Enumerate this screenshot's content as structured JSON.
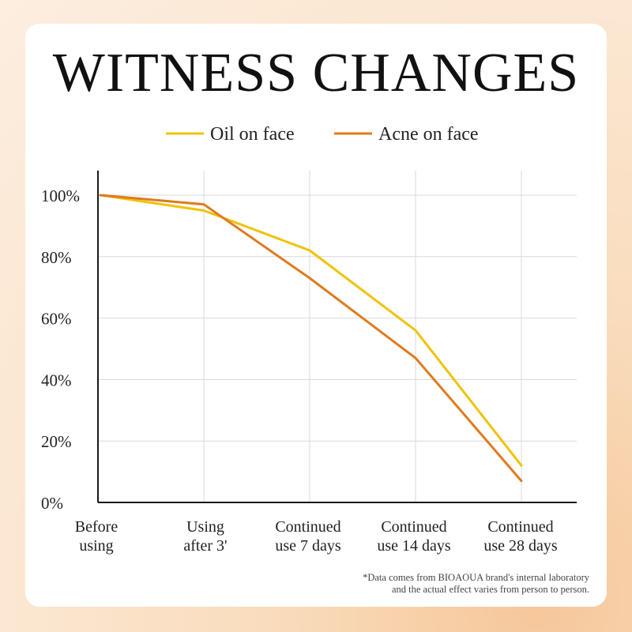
{
  "title": "WITNESS CHANGES",
  "footnote": {
    "line1": "*Data comes from BIOAOUA brand's internal laboratory",
    "line2": "and the actual effect varies from person to person."
  },
  "colors": {
    "oil": "#f0c20a",
    "acne": "#e07a1e",
    "grid": "#d9d9d9",
    "axis": "#1a1a1a"
  },
  "chart_data": {
    "type": "line",
    "title": "WITNESS CHANGES",
    "categories": [
      [
        "Before",
        "using"
      ],
      [
        "Using",
        "after 3'"
      ],
      [
        "Continued",
        "use 7 days"
      ],
      [
        "Continued",
        "use 14 days"
      ],
      [
        "Continued",
        "use 28 days"
      ]
    ],
    "y_ticks": [
      "0%",
      "20%",
      "40%",
      "60%",
      "80%",
      "100%"
    ],
    "ylim": [
      0,
      100
    ],
    "grid": true,
    "legend_position": "top",
    "series": [
      {
        "name": "Oil on face",
        "color": "#f0c20a",
        "values": [
          100,
          95,
          82,
          56,
          12
        ]
      },
      {
        "name": "Acne on face",
        "color": "#e07a1e",
        "values": [
          100,
          97,
          73,
          47,
          7
        ]
      }
    ]
  }
}
